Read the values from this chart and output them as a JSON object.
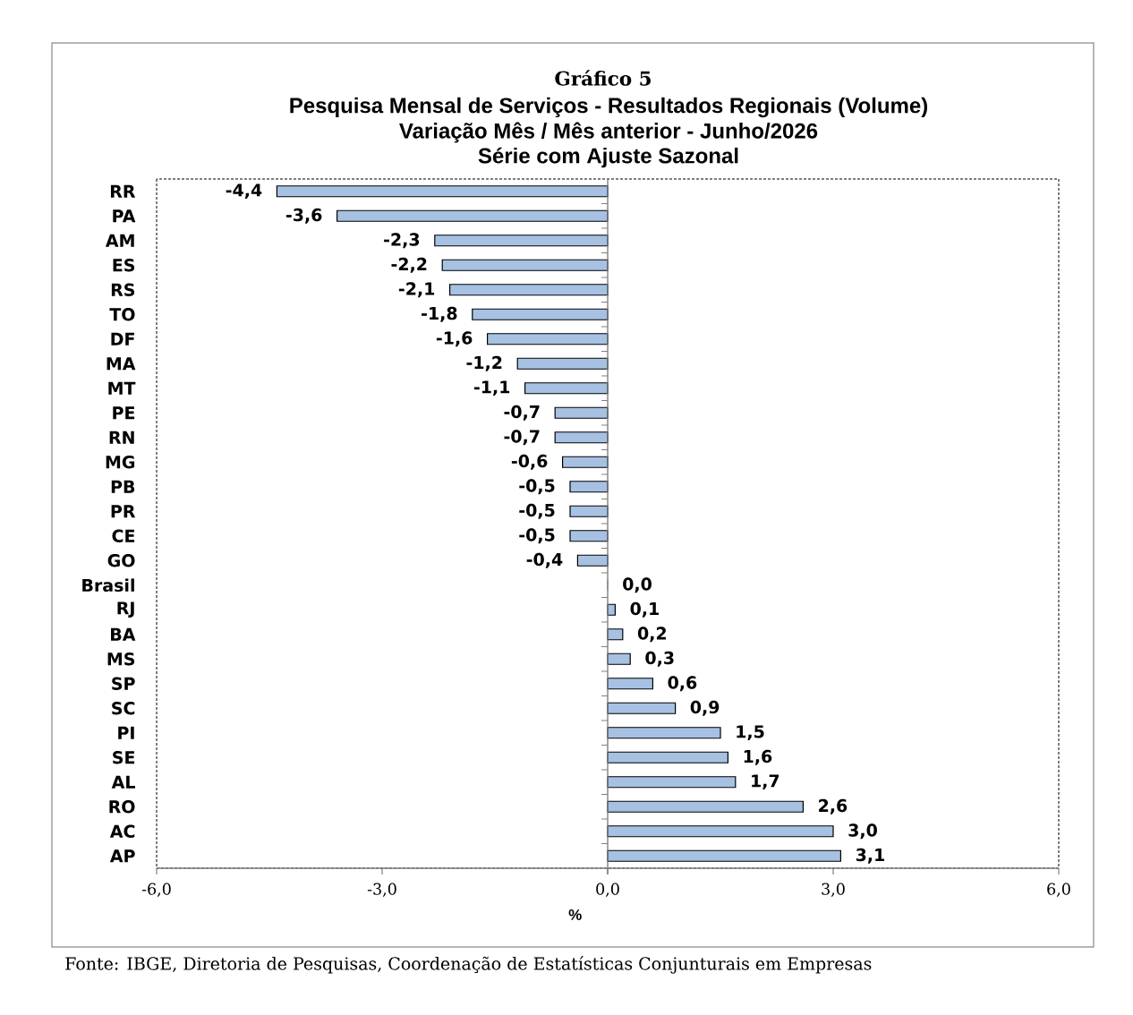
{
  "chart_data": {
    "type": "bar",
    "orientation": "horizontal",
    "title": "Gráfico 5",
    "subtitle": "Pesquisa Mensal de Serviços - Resultados Regionais (Volume)",
    "annotations": [
      "Variação Mês / Mês anterior - Junho/2026",
      "Série com Ajuste Sazonal",
      "Fonte: IBGE, Diretoria de Pesquisas, Coordenação de Estatísticas Conjunturais em Empresas"
    ],
    "xlabel": "%",
    "categories": [
      "RR",
      "PA",
      "AM",
      "ES",
      "RS",
      "TO",
      "DF",
      "MA",
      "MT",
      "PE",
      "RN",
      "MG",
      "PB",
      "PR",
      "CE",
      "GO",
      "Brasil",
      "RJ",
      "BA",
      "MS",
      "SP",
      "SC",
      "PI",
      "SE",
      "AL",
      "RO",
      "AC",
      "AP"
    ],
    "values": [
      -4.4,
      -3.6,
      -2.3,
      -2.2,
      -2.1,
      -1.8,
      -1.6,
      -1.2,
      -1.1,
      -0.7,
      -0.7,
      -0.6,
      -0.5,
      -0.5,
      -0.5,
      -0.4,
      0.0,
      0.1,
      0.2,
      0.3,
      0.6,
      0.9,
      1.5,
      1.6,
      1.7,
      2.6,
      3.0,
      3.1
    ],
    "value_labels": [
      "-4,4",
      "-3,6",
      "-2,3",
      "-2,2",
      "-2,1",
      "-1,8",
      "-1,6",
      "-1,2",
      "-1,1",
      "-0,7",
      "-0,7",
      "-0,6",
      "-0,5",
      "-0,5",
      "-0,5",
      "-0,4",
      "0,0",
      "0,1",
      "0,2",
      "0,3",
      "0,6",
      "0,9",
      "1,5",
      "1,6",
      "1,7",
      "2,6",
      "3,0",
      "3,1"
    ],
    "color": "#a7c1e3",
    "xlim": [
      -6,
      6
    ],
    "xticks": [
      {
        "value": -6,
        "label": "-6,0"
      },
      {
        "value": -3,
        "label": "-3,0"
      },
      {
        "value": 0,
        "label": "0,0"
      },
      {
        "value": 3,
        "label": "3,0"
      },
      {
        "value": 6,
        "label": "6,0"
      }
    ]
  }
}
